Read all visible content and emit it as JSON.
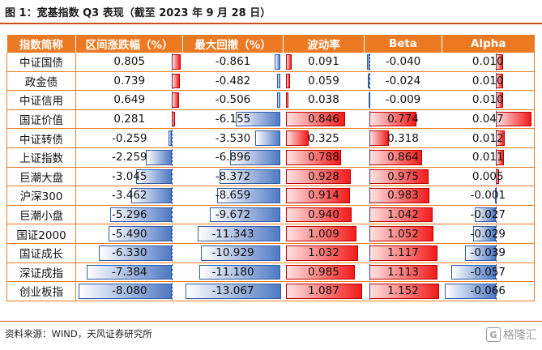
{
  "title": "图 1：宽基指数 Q3 表现（截至 2023 年 9 月 28 日）",
  "headers": [
    "指数简称",
    "区间涨跌幅（%）",
    "最大回撤（%）",
    "波动率",
    "Beta",
    "Alpha"
  ],
  "rows": [
    {
      "name": "中证国债",
      "ret": "0.805",
      "dd": "-0.861",
      "vol": "0.091",
      "beta": "-0.040",
      "alpha": "0.010"
    },
    {
      "name": "政金债",
      "ret": "0.739",
      "dd": "-0.482",
      "vol": "0.059",
      "beta": "-0.024",
      "alpha": "0.010"
    },
    {
      "name": "中证信用",
      "ret": "0.649",
      "dd": "-0.506",
      "vol": "0.038",
      "beta": "-0.009",
      "alpha": "0.010"
    },
    {
      "name": "国证价值",
      "ret": "0.281",
      "dd": "-6.155",
      "vol": "0.846",
      "beta": "0.774",
      "alpha": "0.047"
    },
    {
      "name": "中证转债",
      "ret": "-0.259",
      "dd": "-3.530",
      "vol": "0.325",
      "beta": "0.318",
      "alpha": "0.012"
    },
    {
      "name": "上证指数",
      "ret": "-2.259",
      "dd": "-6.896",
      "vol": "0.788",
      "beta": "0.864",
      "alpha": "0.011"
    },
    {
      "name": "巨潮大盘",
      "ret": "-3.045",
      "dd": "-8.372",
      "vol": "0.928",
      "beta": "0.975",
      "alpha": "0.005"
    },
    {
      "name": "沪深300",
      "ret": "-3.462",
      "dd": "-8.659",
      "vol": "0.914",
      "beta": "0.983",
      "alpha": "-0.001"
    },
    {
      "name": "巨潮小盘",
      "ret": "-5.296",
      "dd": "-9.672",
      "vol": "0.940",
      "beta": "1.042",
      "alpha": "-0.027"
    },
    {
      "name": "国证2000",
      "ret": "-5.490",
      "dd": "-11.343",
      "vol": "1.009",
      "beta": "1.052",
      "alpha": "-0.029"
    },
    {
      "name": "国证成长",
      "ret": "-6.330",
      "dd": "-10.929",
      "vol": "1.032",
      "beta": "1.117",
      "alpha": "-0.039"
    },
    {
      "name": "深证成指",
      "ret": "-7.384",
      "dd": "-11.180",
      "vol": "0.985",
      "beta": "1.113",
      "alpha": "-0.057"
    },
    {
      "name": "创业板指",
      "ret": "-8.080",
      "dd": "-13.067",
      "vol": "1.087",
      "beta": "1.152",
      "alpha": "-0.066"
    }
  ],
  "colors": {
    "header_bg": "#ec7a23",
    "neg_bar": "#4f79c4",
    "pos_bar": "#f31b1b"
  },
  "source": "资料来源：WIND，天风证券研究所",
  "watermark": "格隆汇",
  "watermark_logo": "G"
}
